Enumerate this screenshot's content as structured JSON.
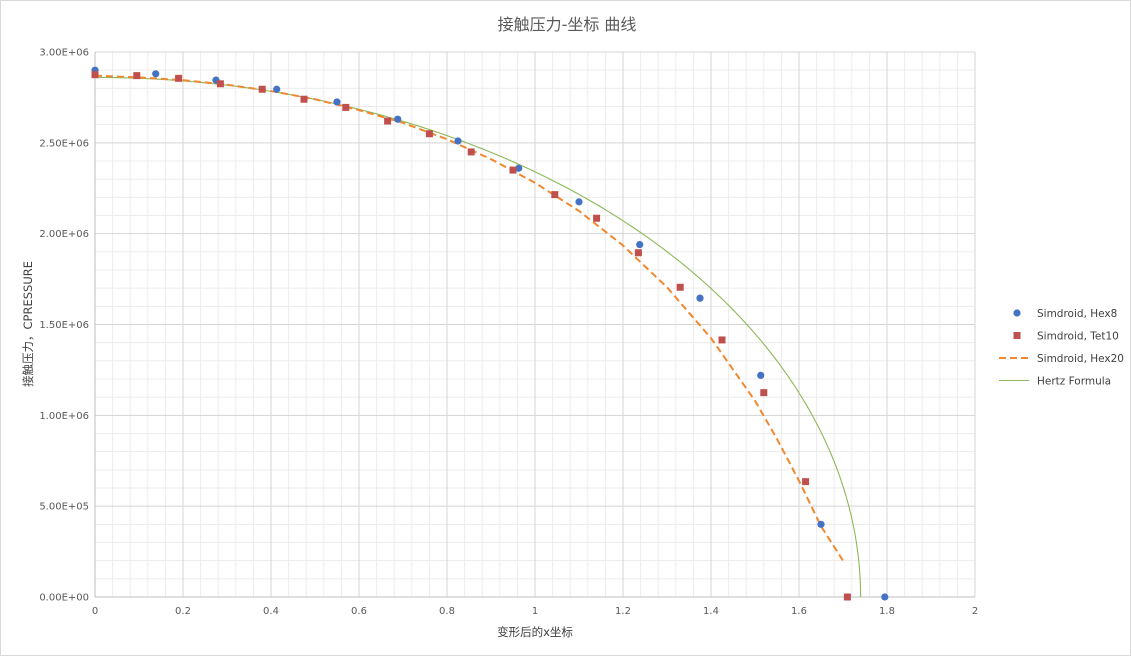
{
  "chart_data": {
    "type": "scatter",
    "title": "接触压力-坐标 曲线",
    "xlabel": "变形后的x坐标",
    "ylabel": "接触压力，CPRESSURE",
    "xlim": [
      0,
      2
    ],
    "ylim": [
      0,
      3000000
    ],
    "x_ticks": [
      0,
      0.2,
      0.4,
      0.6,
      0.8,
      1,
      1.2,
      1.4,
      1.6,
      1.8,
      2
    ],
    "x_tick_labels": [
      "0",
      "0.2",
      "0.4",
      "0.6",
      "0.8",
      "1",
      "1.2",
      "1.4",
      "1.6",
      "1.8",
      "2"
    ],
    "y_ticks": [
      0,
      500000,
      1000000,
      1500000,
      2000000,
      2500000,
      3000000
    ],
    "y_tick_labels": [
      "0.00E+00",
      "5.00E+05",
      "1.00E+06",
      "1.50E+06",
      "2.00E+06",
      "2.50E+06",
      "3.00E+06"
    ],
    "grid": true,
    "legend_position": "right",
    "series": [
      {
        "name": "Simdroid, Hex8",
        "style": "circle-markers",
        "color": "#4472c4",
        "x": [
          0,
          0.138,
          0.275,
          0.413,
          0.55,
          0.688,
          0.825,
          0.963,
          1.1,
          1.238,
          1.375,
          1.513,
          1.65,
          1.795
        ],
        "y": [
          2900000,
          2880000,
          2845000,
          2795000,
          2725000,
          2630000,
          2510000,
          2360000,
          2175000,
          1940000,
          1645000,
          1220000,
          400000,
          0
        ]
      },
      {
        "name": "Simdroid, Tet10",
        "style": "square-markers",
        "color": "#c0504d",
        "x": [
          0,
          0.095,
          0.19,
          0.285,
          0.38,
          0.475,
          0.57,
          0.665,
          0.76,
          0.855,
          0.95,
          1.045,
          1.14,
          1.235,
          1.33,
          1.425,
          1.52,
          1.615,
          1.71
        ],
        "y": [
          2875000,
          2870000,
          2855000,
          2825000,
          2795000,
          2740000,
          2695000,
          2620000,
          2550000,
          2450000,
          2350000,
          2215000,
          2085000,
          1895000,
          1705000,
          1415000,
          1125000,
          635000,
          0
        ]
      },
      {
        "name": "Simdroid, Hex20",
        "style": "dashed-line",
        "color": "#f0882f",
        "x": [
          0,
          0.1,
          0.2,
          0.3,
          0.4,
          0.5,
          0.6,
          0.7,
          0.8,
          0.9,
          1.0,
          1.1,
          1.2,
          1.3,
          1.4,
          1.5,
          1.55,
          1.6,
          1.65,
          1.7
        ],
        "y": [
          2870000,
          2860000,
          2845000,
          2820000,
          2785000,
          2740000,
          2680000,
          2610000,
          2520000,
          2410000,
          2280000,
          2125000,
          1935000,
          1705000,
          1425000,
          1080000,
          870000,
          640000,
          390000,
          200000
        ]
      },
      {
        "name": "Hertz Formula",
        "style": "thin-line",
        "color": "#8db85a",
        "model": {
          "p0": 2860000,
          "a": 1.74
        }
      }
    ]
  }
}
